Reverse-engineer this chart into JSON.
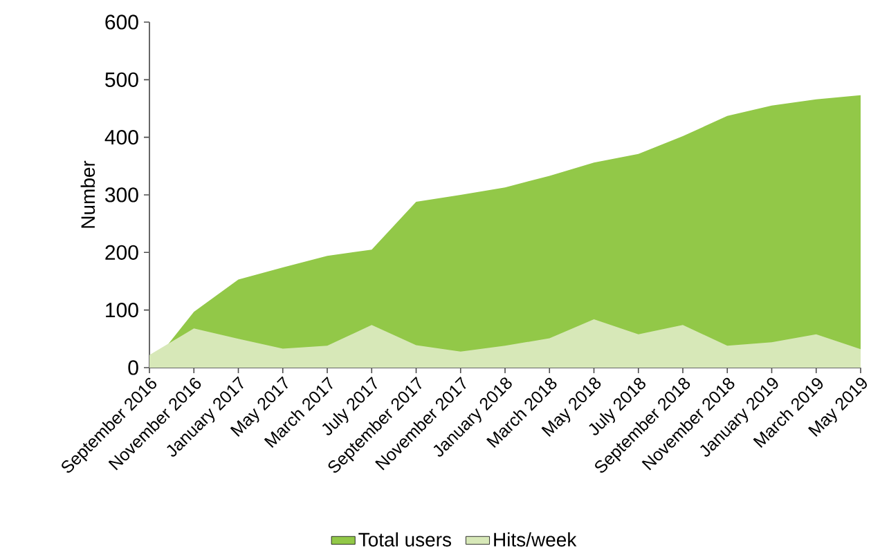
{
  "chart_data": {
    "type": "area",
    "ylabel": "Number",
    "categories": [
      "September 2016",
      "November 2016",
      "January 2017",
      "May 2017",
      "March 2017",
      "July 2017",
      "September 2017",
      "November 2017",
      "January 2018",
      "March 2018",
      "May 2018",
      "July 2018",
      "September 2018",
      "November 2018",
      "January 2019",
      "March 2019",
      "May 2019"
    ],
    "series": [
      {
        "name": "Total users",
        "color": "#92c848",
        "values": [
          0,
          97,
          153,
          174,
          194,
          205,
          288,
          300,
          313,
          333,
          356,
          371,
          402,
          437,
          455,
          466,
          473
        ]
      },
      {
        "name": "Hits/week",
        "color": "#d7e8b8",
        "values": [
          22,
          68,
          50,
          33,
          38,
          74,
          39,
          28,
          38,
          51,
          84,
          58,
          74,
          38,
          44,
          58,
          32
        ]
      }
    ],
    "ylim": [
      0,
      600
    ],
    "yticks": [
      0,
      100,
      200,
      300,
      400,
      500,
      600
    ],
    "grid": false,
    "legend": "bottom"
  }
}
